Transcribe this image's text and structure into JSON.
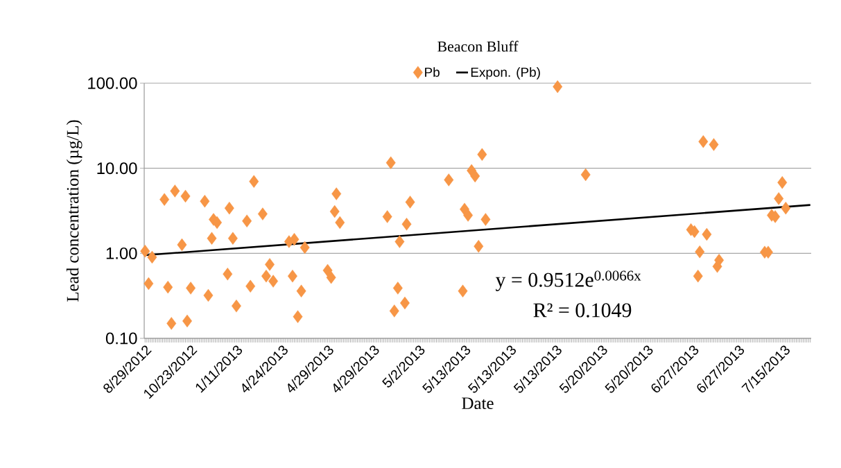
{
  "chart_data": {
    "type": "scatter",
    "title": "Beacon Bluff",
    "xlabel": "Date",
    "ylabel": "Lead  concentration (µg/L)",
    "categories": [
      "8/29/2012",
      null,
      null,
      null,
      null,
      null,
      null,
      null,
      null,
      null,
      null,
      null,
      null,
      null,
      null,
      null,
      null,
      null,
      null,
      null,
      null,
      null,
      null,
      null,
      null,
      null,
      "10/23/2012",
      null,
      null,
      null,
      null,
      null,
      null,
      null,
      null,
      null,
      null,
      null,
      null,
      null,
      null,
      null,
      null,
      null,
      null,
      null,
      null,
      null,
      null,
      null,
      null,
      null,
      "1/11/2013",
      null,
      null,
      null,
      null,
      null,
      null,
      null,
      null,
      null,
      null,
      null,
      null,
      null,
      null,
      null,
      null,
      null,
      null,
      null,
      null,
      null,
      null,
      null,
      null,
      null,
      "4/24/2013",
      null,
      null,
      null,
      null,
      null,
      null,
      null,
      null,
      null,
      null,
      null,
      null,
      null,
      null,
      null,
      null,
      null,
      null,
      null,
      null,
      null,
      null,
      null,
      null,
      null,
      "4/29/2013",
      null,
      null,
      null,
      null,
      null,
      null,
      null,
      null,
      null,
      null,
      null,
      null,
      null,
      null,
      null,
      null,
      null,
      null,
      null,
      null,
      null,
      null,
      null,
      null,
      null,
      "4/29/2013",
      null,
      null,
      null,
      null,
      null,
      null,
      null,
      null,
      null,
      null,
      null,
      null,
      null,
      null,
      null,
      null,
      null,
      null,
      null,
      null,
      null,
      null,
      null,
      null,
      null,
      "5/2/2013",
      null,
      null,
      null,
      null,
      null,
      null,
      null,
      null,
      null,
      null,
      null,
      null,
      null,
      null,
      null,
      null,
      null,
      null,
      null,
      null,
      null,
      null,
      null,
      null,
      null,
      "5/13/2013",
      null,
      null,
      null,
      null,
      null,
      null,
      null,
      null,
      null,
      null,
      null,
      null,
      null,
      null,
      null,
      null,
      null,
      null,
      null,
      null,
      null,
      null,
      null,
      null,
      null,
      "5/13/2013",
      null,
      null,
      null,
      null,
      null,
      null,
      null,
      null,
      null,
      null,
      null,
      null,
      null,
      null,
      null,
      null,
      null,
      null,
      null,
      null,
      null,
      null,
      null,
      null,
      null,
      "5/13/2013",
      null,
      null,
      null,
      null,
      null,
      null,
      null,
      null,
      null,
      null,
      null,
      null,
      null,
      null,
      null,
      null,
      null,
      null,
      null,
      null,
      null,
      null,
      null,
      null,
      null,
      "5/20/2013",
      null,
      null,
      null,
      null,
      null,
      null,
      null,
      null,
      null,
      null,
      null,
      null,
      null,
      null,
      null,
      null,
      null,
      null,
      null,
      null,
      null,
      null,
      null,
      null,
      null,
      "5/20/2013",
      null,
      null,
      null,
      null,
      null,
      null,
      null,
      null,
      null,
      null,
      null,
      null,
      null,
      null,
      null,
      null,
      null,
      null,
      null,
      null,
      null,
      null,
      null,
      null,
      null,
      "6/27/2013",
      null,
      null,
      null,
      null,
      null,
      null,
      null,
      null,
      null,
      null,
      null,
      null,
      null,
      null,
      null,
      null,
      null,
      null,
      null,
      null,
      null,
      null,
      null,
      null,
      null,
      "6/27/2013",
      null,
      null,
      null,
      null,
      null,
      null,
      null,
      null,
      null,
      null,
      null,
      null,
      null,
      null,
      null,
      null,
      null,
      null,
      null,
      null,
      null,
      null,
      null,
      null,
      null,
      "7/15/2013",
      null,
      null,
      null,
      null,
      null,
      null,
      null,
      null,
      null,
      null,
      null,
      null,
      null,
      null,
      null
    ],
    "series": [
      {
        "name": "Pb",
        "color": "#f79646",
        "values": [
          1.06,
          null,
          0.44,
          null,
          0.9,
          null,
          null,
          null,
          null,
          null,
          null,
          4.3,
          null,
          0.4,
          null,
          0.15,
          null,
          5.4,
          null,
          null,
          null,
          1.26,
          null,
          4.7,
          0.16,
          null,
          0.39,
          null,
          null,
          null,
          null,
          null,
          null,
          null,
          4.1,
          null,
          0.32,
          null,
          1.5,
          2.5,
          null,
          2.3,
          null,
          null,
          null,
          null,
          null,
          0.57,
          3.4,
          null,
          1.5,
          null,
          0.24,
          null,
          null,
          null,
          null,
          null,
          2.4,
          null,
          0.41,
          null,
          7.0,
          null,
          null,
          null,
          null,
          2.9,
          null,
          0.54,
          null,
          0.74,
          null,
          0.47,
          null,
          null,
          null,
          null,
          null,
          null,
          null,
          null,
          1.37,
          null,
          0.54,
          1.46,
          null,
          0.18,
          null,
          0.36,
          null,
          1.17,
          null,
          null,
          null,
          null,
          null,
          null,
          null,
          null,
          null,
          null,
          null,
          null,
          0.63,
          null,
          0.52,
          null,
          3.1,
          5.0,
          null,
          2.3,
          null,
          null,
          null,
          null,
          null,
          null,
          null,
          null,
          null,
          null,
          null,
          null,
          null,
          null,
          null,
          null,
          null,
          null,
          null,
          null,
          null,
          null,
          null,
          null,
          null,
          null,
          2.7,
          null,
          11.6,
          null,
          0.21,
          null,
          0.39,
          1.37,
          null,
          null,
          0.26,
          2.2,
          null,
          4.0,
          null,
          null,
          null,
          null,
          null,
          null,
          null,
          null,
          null,
          null,
          null,
          null,
          null,
          null,
          null,
          null,
          null,
          null,
          null,
          null,
          null,
          7.3,
          null,
          null,
          null,
          null,
          null,
          null,
          null,
          0.36,
          3.3,
          null,
          2.8,
          null,
          9.4,
          null,
          8.1,
          null,
          1.21,
          null,
          14.5,
          null,
          2.5,
          null,
          null,
          null,
          null,
          null,
          null,
          null,
          null,
          null,
          null,
          null,
          null,
          null,
          null,
          null,
          null,
          null,
          null,
          null,
          null,
          null,
          null,
          null,
          null,
          null,
          null,
          null,
          null,
          null,
          null,
          null,
          null,
          null,
          null,
          null,
          null,
          null,
          null,
          null,
          null,
          91,
          null,
          null,
          null,
          null,
          null,
          null,
          null,
          null,
          null,
          null,
          null,
          null,
          null,
          null,
          null,
          8.4,
          null,
          null,
          null,
          null,
          null,
          null,
          null,
          null,
          null,
          null,
          null,
          null,
          null,
          null,
          null,
          null,
          null,
          null,
          null,
          null,
          null,
          null,
          null,
          null,
          null,
          null,
          null,
          null,
          null,
          null,
          null,
          null,
          null,
          null,
          null,
          null,
          null,
          null,
          null,
          null,
          null,
          null,
          null,
          null,
          null,
          null,
          null,
          null,
          null,
          null,
          null,
          null,
          null,
          null,
          null,
          null,
          null,
          null,
          null,
          1.9,
          null,
          1.8,
          null,
          0.54,
          1.04,
          null,
          20.6,
          null,
          1.67,
          null,
          null,
          null,
          19.0,
          null,
          0.7,
          0.83,
          null,
          null,
          null,
          null,
          null,
          null,
          null,
          null,
          null,
          null,
          null,
          null,
          null,
          null,
          null,
          null,
          null,
          null,
          null,
          null,
          null,
          null,
          null,
          null,
          null,
          1.03,
          null,
          1.03,
          null,
          2.8,
          null,
          2.7,
          null,
          4.4,
          null,
          6.8,
          null,
          3.4,
          null,
          null,
          null,
          null,
          null,
          null,
          null,
          null,
          null,
          null,
          null,
          null,
          null,
          null
        ]
      },
      {
        "name": "Expon. (Pb)",
        "type": "line",
        "color": "#000000",
        "marker": "none",
        "values": [
          0.95,
          null,
          null,
          null,
          null,
          null,
          null,
          null,
          null,
          null,
          null,
          null,
          null,
          null,
          null,
          null,
          null,
          null,
          null,
          null,
          null,
          null,
          null,
          null,
          null,
          null,
          null,
          null,
          null,
          null,
          null,
          null,
          null,
          null,
          null,
          null,
          null,
          null,
          null,
          null,
          null,
          null,
          null,
          null,
          null,
          null,
          null,
          null,
          null,
          null,
          null,
          null,
          null,
          null,
          null,
          null,
          null,
          null,
          null,
          null,
          null,
          null,
          null,
          null,
          null,
          null,
          null,
          null,
          null,
          null,
          null,
          null,
          null,
          null,
          null,
          null,
          null,
          null,
          null,
          null,
          null,
          null,
          null,
          null,
          null,
          null,
          null,
          null,
          null,
          null,
          null,
          null,
          null,
          null,
          null,
          null,
          null,
          null,
          null,
          null,
          null,
          null,
          null,
          null,
          null,
          null,
          null,
          null,
          null,
          null,
          null,
          null,
          null,
          null,
          null,
          null,
          null,
          null,
          null,
          null,
          null,
          null,
          null,
          null,
          null,
          null,
          null,
          null,
          null,
          null,
          null,
          null,
          null,
          null,
          null,
          null,
          null,
          null,
          null,
          null,
          null,
          null,
          null,
          null,
          null,
          null,
          null,
          null,
          null,
          null,
          null,
          null,
          null,
          null,
          null,
          null,
          null,
          null,
          null,
          null,
          null,
          null,
          null,
          null,
          null,
          null,
          null,
          null,
          null,
          null,
          null,
          null,
          null,
          null,
          null,
          null,
          null,
          null,
          null,
          null,
          null,
          null,
          null,
          null,
          null,
          null,
          null,
          null,
          null,
          null,
          null,
          null,
          null,
          null,
          null,
          null,
          null,
          null,
          null,
          null,
          null,
          null,
          null,
          null,
          null,
          null,
          null,
          null,
          null,
          null,
          null,
          null,
          null,
          null,
          null,
          null,
          null,
          null,
          null,
          null,
          null,
          null,
          null,
          null,
          null,
          null,
          null,
          null,
          null,
          null,
          null,
          null,
          null,
          null,
          null,
          null,
          null,
          null,
          null,
          null,
          null,
          null,
          null,
          null,
          null,
          null,
          null,
          null,
          null,
          null,
          null,
          null,
          null,
          null,
          null,
          null,
          null,
          null,
          null,
          null,
          null,
          null,
          null,
          null,
          null,
          null,
          null,
          null,
          null,
          null,
          null,
          null,
          null,
          null,
          null,
          null,
          null,
          null,
          null,
          null,
          null,
          null,
          null,
          null,
          null,
          null,
          null,
          null,
          null,
          null,
          null,
          null,
          null,
          null,
          null,
          null,
          null,
          null,
          null,
          null,
          null,
          null,
          null,
          null,
          null,
          null,
          null,
          null,
          null,
          null,
          null,
          null,
          null,
          null,
          null,
          null,
          null,
          null,
          null,
          null,
          null,
          null,
          null,
          null,
          null,
          null,
          null,
          null,
          null,
          null,
          null,
          null,
          null,
          null,
          null,
          null,
          null,
          null,
          null,
          null,
          null,
          null,
          null,
          null,
          null,
          null,
          null,
          null,
          null,
          null,
          null,
          null,
          null,
          null,
          null,
          null,
          null,
          null,
          null,
          null,
          null,
          null,
          null,
          null,
          null,
          null,
          null,
          null,
          null,
          null,
          null,
          null,
          null,
          null,
          null,
          null,
          null,
          null,
          null,
          3.7
        ]
      }
    ],
    "marker": "diamond",
    "log": "y",
    "grid": "y",
    "legend": "top",
    "ylim": [
      0.1,
      100
    ],
    "yticks": [
      {
        "value": 0.1,
        "label": "0.10"
      },
      {
        "value": 1,
        "label": "1.00"
      },
      {
        "value": 10,
        "label": "10.00"
      },
      {
        "value": 100,
        "label": "100.00"
      }
    ],
    "annotations": [
      "y = 0.9512e$^{0.0066x}$",
      "R² = 0.1049"
    ]
  }
}
